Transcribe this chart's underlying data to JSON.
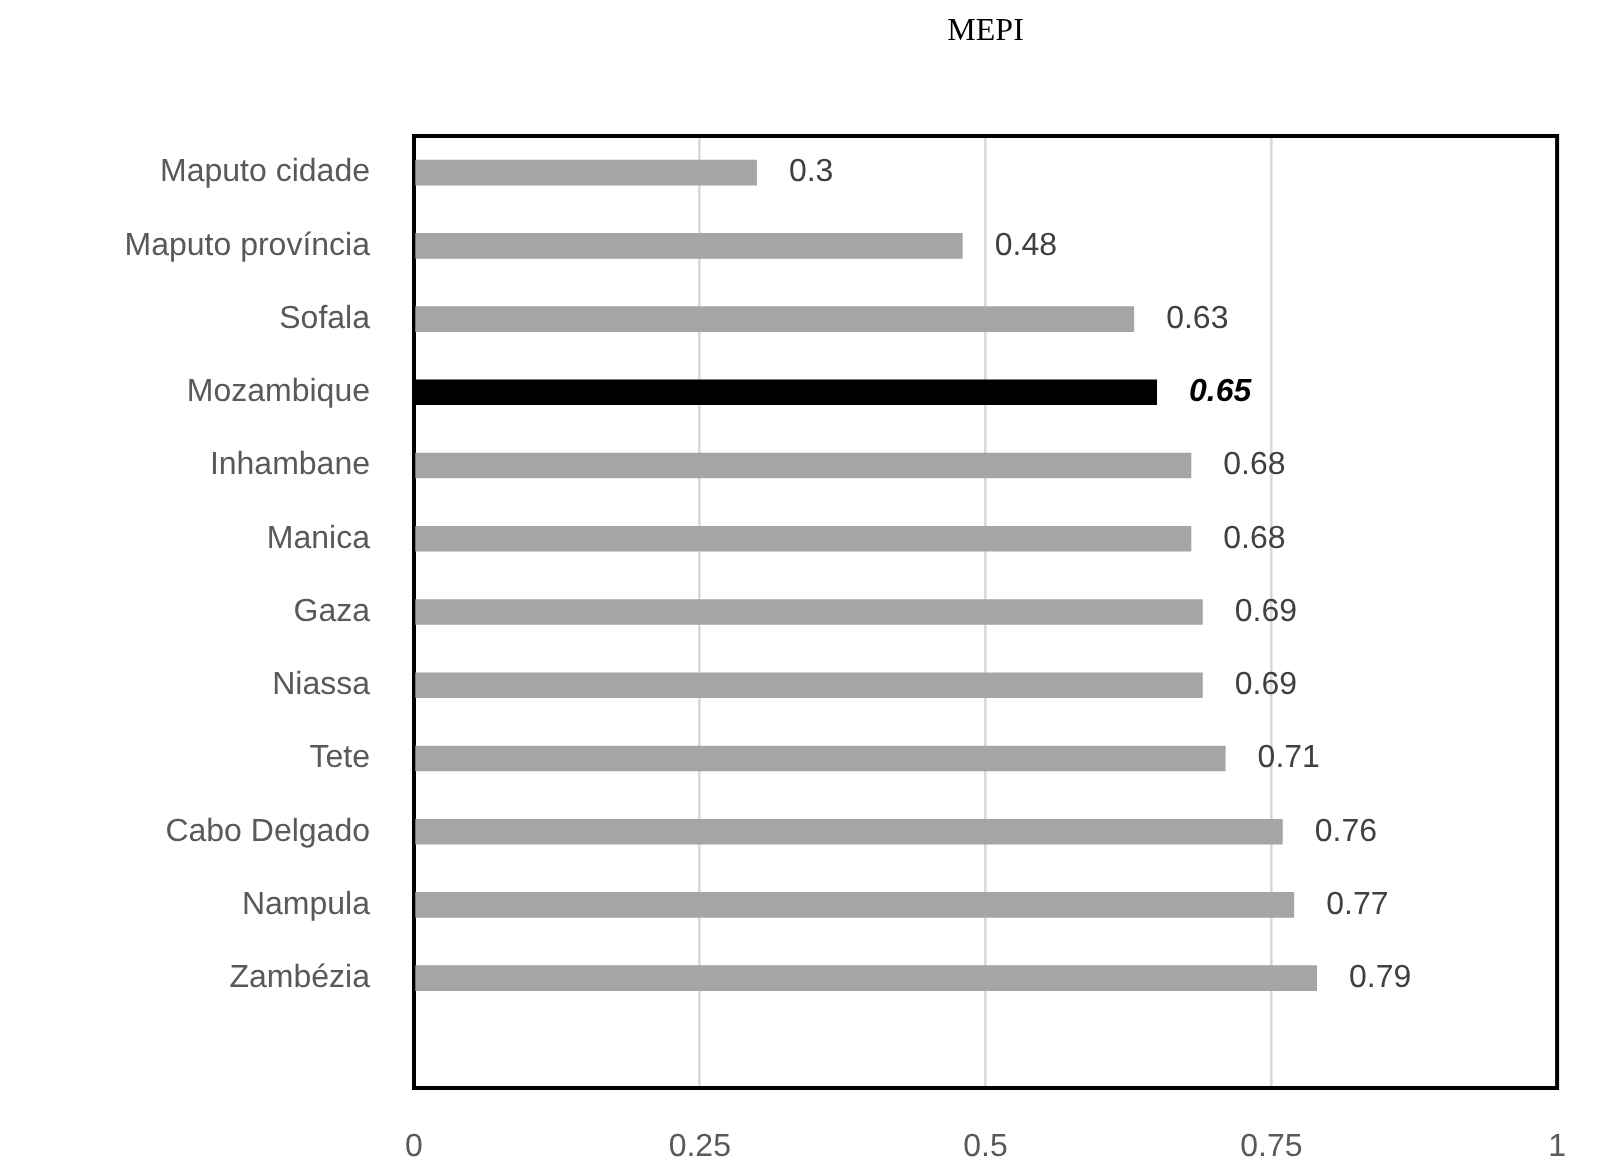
{
  "chart_data": {
    "type": "bar",
    "title": "MEPI",
    "orientation": "horizontal",
    "categories": [
      "Maputo cidade",
      "Maputo província",
      "Sofala",
      "Mozambique",
      "Inhambane",
      "Manica",
      "Gaza",
      "Niassa",
      "Tete",
      "Cabo Delgado",
      "Nampula",
      "Zambézia",
      null
    ],
    "values": [
      0.3,
      0.48,
      0.63,
      0.65,
      0.68,
      0.68,
      0.69,
      0.69,
      0.71,
      0.76,
      0.77,
      0.79,
      null
    ],
    "colors": [
      "#a5a5a5",
      "#a5a5a5",
      "#a5a5a5",
      "#000000",
      "#a5a5a5",
      "#a5a5a5",
      "#a5a5a5",
      "#a5a5a5",
      "#a5a5a5",
      "#a5a5a5",
      "#a5a5a5",
      "#a5a5a5",
      "#a5a5a5"
    ],
    "xlim": [
      0,
      1
    ],
    "xticks": [
      0,
      0.25,
      0.5,
      0.75,
      1
    ],
    "grid": "x",
    "data_labels": true
  }
}
